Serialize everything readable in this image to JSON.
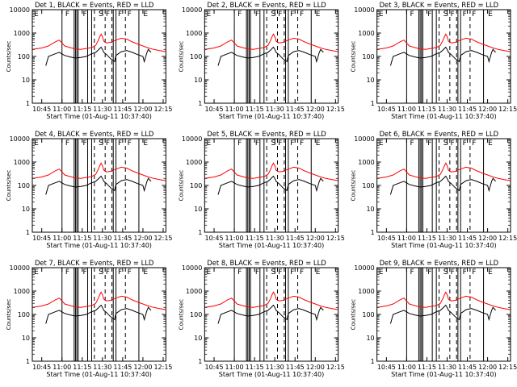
{
  "chart_data": {
    "type": "line",
    "shared": {
      "xlabel": "Start Time (01-Aug-11 10:37:40)",
      "ylabel": "Counts/sec",
      "x_ticks": [
        "10:45",
        "11:00",
        "11:15",
        "11:30",
        "11:45",
        "12:00",
        "12:15"
      ],
      "x_tick_minutes": [
        45,
        60,
        75,
        90,
        105,
        120,
        135
      ],
      "xlim_minutes": [
        38,
        137
      ],
      "y_ticks": [
        "1",
        "10",
        "100",
        "1000",
        "10000"
      ],
      "y_tick_values": [
        1,
        10,
        100,
        1000,
        10000
      ],
      "ylim": [
        1,
        10000
      ],
      "yscale": "log",
      "solid_markers_minutes": [
        60,
        69,
        70,
        71,
        72,
        79,
        82,
        98,
        100,
        117
      ],
      "dashed_markers_minutes": [
        84,
        92,
        97,
        107
      ],
      "flags": [
        {
          "label": "E",
          "minute": 41
        },
        {
          "label": "F",
          "minute": 64
        },
        {
          "label": "F",
          "minute": 77
        },
        {
          "label": "F",
          "minute": 94
        },
        {
          "label": "F",
          "minute": 103
        },
        {
          "label": "F",
          "minute": 110
        },
        {
          "label": "E",
          "minute": 122
        }
      ],
      "saa_symbol": "S",
      "saa_minute": 89,
      "colors": {
        "events": "#000000",
        "lld": "#ff0000"
      },
      "lld_curve_minutes": [
        38,
        45,
        50,
        55,
        58,
        62,
        66,
        70,
        74,
        78,
        82,
        85,
        87,
        88,
        89,
        90,
        91,
        93,
        96,
        100,
        104,
        108,
        112,
        116,
        120,
        124,
        128,
        132,
        137
      ],
      "lld_curve_values": [
        200,
        230,
        280,
        420,
        500,
        280,
        240,
        210,
        200,
        220,
        240,
        300,
        500,
        700,
        900,
        700,
        450,
        380,
        400,
        500,
        600,
        550,
        420,
        340,
        280,
        230,
        200,
        180,
        160
      ],
      "events_curve_minutes": [
        48,
        50,
        55,
        58,
        62,
        66,
        70,
        74,
        78,
        82,
        85,
        87,
        88,
        89,
        90,
        91,
        93,
        96,
        99,
        100,
        104,
        108,
        112,
        116,
        120,
        121,
        123,
        124,
        126
      ],
      "events_curve_values": [
        40,
        100,
        130,
        150,
        110,
        95,
        85,
        90,
        100,
        130,
        150,
        190,
        220,
        250,
        200,
        150,
        120,
        80,
        60,
        110,
        160,
        180,
        150,
        120,
        100,
        60,
        150,
        200,
        150
      ]
    },
    "panels": [
      {
        "title": "Det 1, BLACK = Events, RED = LLD"
      },
      {
        "title": "Det 2, BLACK = Events, RED = LLD"
      },
      {
        "title": "Det 3, BLACK = Events, RED = LLD"
      },
      {
        "title": "Det 4, BLACK = Events, RED = LLD"
      },
      {
        "title": "Det 5, BLACK = Events, RED = LLD"
      },
      {
        "title": "Det 6, BLACK = Events, RED = LLD"
      },
      {
        "title": "Det 7, BLACK = Events, RED = LLD"
      },
      {
        "title": "Det 8, BLACK = Events, RED = LLD"
      },
      {
        "title": "Det 9, BLACK = Events, RED = LLD"
      }
    ]
  }
}
